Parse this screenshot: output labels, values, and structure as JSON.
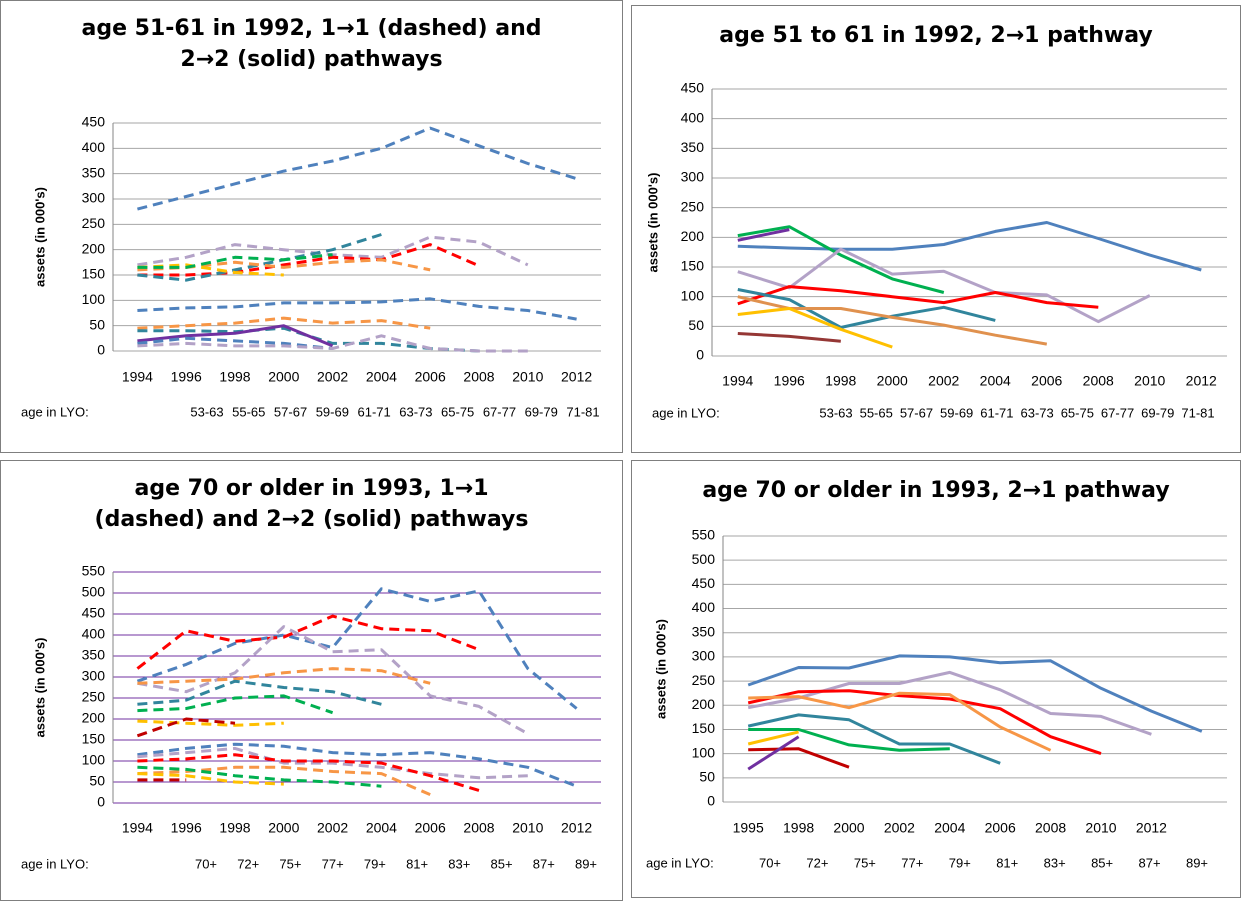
{
  "chart_data": [
    {
      "type": "line",
      "title": "age 51-61 in 1992, 1→1 (dashed) and 2→2 (solid) pathways",
      "ylabel": "assets (in 000's)",
      "categories": [
        "1994",
        "1996",
        "1998",
        "2000",
        "2002",
        "2004",
        "2006",
        "2008",
        "2010",
        "2012"
      ],
      "age_label": "age in LYO:",
      "ages": [
        "53-63",
        "55-65",
        "57-67",
        "59-69",
        "61-71",
        "63-73",
        "65-75",
        "67-77",
        "69-79",
        "71-81"
      ],
      "ylim": [
        0,
        450
      ],
      "yticks": [
        0,
        50,
        100,
        150,
        200,
        250,
        300,
        350,
        400,
        450
      ],
      "grid": true,
      "grid_color": "#a6a6a6",
      "series": [
        {
          "color": "#4f81bd",
          "dashed": true,
          "values": [
            280,
            305,
            330,
            355,
            375,
            400,
            440,
            405,
            370,
            340
          ]
        },
        {
          "color": "#4f81bd",
          "dashed": true,
          "values": [
            80,
            85,
            87,
            95,
            95,
            97,
            103,
            88,
            80,
            63
          ]
        },
        {
          "color": "#b3a2c7",
          "dashed": true,
          "values": [
            170,
            185,
            210,
            200,
            190,
            185,
            225,
            215,
            170,
            null
          ]
        },
        {
          "color": "#ff0000",
          "dashed": true,
          "values": [
            150,
            150,
            155,
            170,
            185,
            180,
            210,
            168,
            null,
            null
          ]
        },
        {
          "color": "#31859c",
          "dashed": true,
          "values": [
            150,
            140,
            160,
            180,
            200,
            230,
            null,
            null,
            null,
            null
          ]
        },
        {
          "color": "#f79646",
          "dashed": true,
          "values": [
            160,
            165,
            175,
            165,
            175,
            180,
            160,
            null,
            null,
            null
          ]
        },
        {
          "color": "#ffc000",
          "dashed": true,
          "values": [
            165,
            170,
            155,
            150,
            null,
            null,
            null,
            null,
            null,
            null
          ]
        },
        {
          "color": "#00b050",
          "dashed": true,
          "values": [
            165,
            165,
            185,
            180,
            190,
            null,
            null,
            null,
            null,
            null
          ]
        },
        {
          "color": "#f79646",
          "dashed": true,
          "values": [
            45,
            50,
            55,
            65,
            55,
            60,
            45,
            null,
            null,
            null
          ]
        },
        {
          "color": "#31859c",
          "dashed": true,
          "values": [
            40,
            40,
            38,
            45,
            15,
            15,
            5,
            0,
            null,
            null
          ]
        },
        {
          "color": "#7030a0",
          "dashed": false,
          "values": [
            20,
            30,
            35,
            50,
            10,
            null,
            null,
            null,
            null,
            null
          ]
        },
        {
          "color": "#4f81bd",
          "dashed": true,
          "values": [
            15,
            25,
            20,
            15,
            5,
            null,
            null,
            null,
            null,
            null
          ]
        },
        {
          "color": "#b3a2c7",
          "dashed": true,
          "values": [
            10,
            15,
            10,
            10,
            5,
            30,
            5,
            0,
            0,
            null
          ]
        }
      ]
    },
    {
      "type": "line",
      "title": "age 51 to 61 in 1992, 2→1 pathway",
      "ylabel": "assets (in 000's)",
      "categories": [
        "1994",
        "1996",
        "1998",
        "2000",
        "2002",
        "2004",
        "2006",
        "2008",
        "2010",
        "2012"
      ],
      "age_label": "age in LYO:",
      "ages": [
        "53-63",
        "55-65",
        "57-67",
        "59-69",
        "61-71",
        "63-73",
        "65-75",
        "67-77",
        "69-79",
        "71-81"
      ],
      "ylim": [
        0,
        450
      ],
      "yticks": [
        0,
        50,
        100,
        150,
        200,
        250,
        300,
        350,
        400,
        450
      ],
      "grid": true,
      "grid_color": "#a6a6a6",
      "series": [
        {
          "color": "#4f81bd",
          "dashed": false,
          "values": [
            185,
            182,
            180,
            180,
            188,
            210,
            225,
            198,
            170,
            145
          ]
        },
        {
          "color": "#00b050",
          "dashed": false,
          "values": [
            203,
            218,
            170,
            130,
            107,
            null,
            null,
            null,
            null,
            null
          ]
        },
        {
          "color": "#7030a0",
          "dashed": false,
          "values": [
            195,
            213,
            null,
            null,
            null,
            null,
            null,
            null,
            null,
            null
          ]
        },
        {
          "color": "#b3a2c7",
          "dashed": false,
          "values": [
            142,
            115,
            180,
            138,
            143,
            107,
            103,
            58,
            102,
            null
          ]
        },
        {
          "color": "#ff0000",
          "dashed": false,
          "values": [
            88,
            117,
            110,
            100,
            90,
            107,
            90,
            82,
            null,
            null
          ]
        },
        {
          "color": "#31859c",
          "dashed": false,
          "values": [
            112,
            95,
            48,
            67,
            82,
            60,
            null,
            null,
            null,
            null
          ]
        },
        {
          "color": "#e0914e",
          "dashed": false,
          "values": [
            100,
            80,
            80,
            65,
            52,
            35,
            20,
            null,
            null,
            null
          ]
        },
        {
          "color": "#ffc000",
          "dashed": false,
          "values": [
            70,
            80,
            45,
            15,
            null,
            null,
            null,
            null,
            null,
            null
          ]
        },
        {
          "color": "#953735",
          "dashed": false,
          "values": [
            38,
            33,
            25,
            null,
            null,
            null,
            null,
            null,
            null,
            null
          ]
        }
      ]
    },
    {
      "type": "line",
      "title": "age 70 or older in 1993, 1→1 (dashed) and 2→2 (solid) pathways",
      "ylabel": "assets (in 000's)",
      "categories": [
        "1994",
        "1996",
        "1998",
        "2000",
        "2002",
        "2004",
        "2006",
        "2008",
        "2010",
        "2012"
      ],
      "age_label": "age in LYO:",
      "ages": [
        "70+",
        "72+",
        "75+",
        "77+",
        "79+",
        "81+",
        "83+",
        "85+",
        "87+",
        "89+"
      ],
      "ylim": [
        0,
        550
      ],
      "yticks": [
        0,
        50,
        100,
        150,
        200,
        250,
        300,
        350,
        400,
        450,
        500,
        550
      ],
      "grid": true,
      "grid_color": "#7030a0",
      "series": [
        {
          "color": "#4f81bd",
          "dashed": true,
          "values": [
            290,
            330,
            380,
            400,
            370,
            510,
            480,
            505,
            320,
            225
          ]
        },
        {
          "color": "#ff0000",
          "dashed": true,
          "values": [
            320,
            410,
            385,
            395,
            445,
            415,
            410,
            365,
            null,
            null
          ]
        },
        {
          "color": "#b3a2c7",
          "dashed": true,
          "values": [
            285,
            265,
            310,
            420,
            360,
            365,
            255,
            230,
            165,
            null
          ]
        },
        {
          "color": "#f79646",
          "dashed": true,
          "values": [
            285,
            290,
            295,
            310,
            320,
            315,
            285,
            null,
            null,
            null
          ]
        },
        {
          "color": "#31859c",
          "dashed": true,
          "values": [
            235,
            245,
            290,
            275,
            265,
            235,
            null,
            null,
            null,
            null
          ]
        },
        {
          "color": "#00b050",
          "dashed": true,
          "values": [
            220,
            225,
            250,
            255,
            215,
            null,
            null,
            null,
            null,
            null
          ]
        },
        {
          "color": "#ffc000",
          "dashed": true,
          "values": [
            195,
            190,
            185,
            190,
            null,
            null,
            null,
            null,
            null,
            null
          ]
        },
        {
          "color": "#c00000",
          "dashed": true,
          "values": [
            160,
            200,
            190,
            null,
            null,
            null,
            null,
            null,
            null,
            null
          ]
        },
        {
          "color": "#4f81bd",
          "dashed": true,
          "values": [
            115,
            130,
            140,
            135,
            120,
            115,
            120,
            105,
            85,
            40
          ]
        },
        {
          "color": "#b3a2c7",
          "dashed": true,
          "values": [
            110,
            120,
            130,
            95,
            95,
            85,
            70,
            60,
            65,
            null
          ]
        },
        {
          "color": "#ff0000",
          "dashed": true,
          "values": [
            100,
            105,
            115,
            100,
            100,
            95,
            65,
            30,
            null,
            null
          ]
        },
        {
          "color": "#f79646",
          "dashed": true,
          "values": [
            70,
            75,
            85,
            85,
            75,
            70,
            20,
            null,
            null,
            null
          ]
        },
        {
          "color": "#00b050",
          "dashed": true,
          "values": [
            85,
            80,
            65,
            55,
            50,
            40,
            null,
            null,
            null,
            null
          ]
        },
        {
          "color": "#ffc000",
          "dashed": true,
          "values": [
            70,
            65,
            50,
            45,
            null,
            null,
            null,
            null,
            null,
            null
          ]
        },
        {
          "color": "#c00000",
          "dashed": true,
          "values": [
            55,
            55,
            null,
            null,
            null,
            null,
            null,
            null,
            null,
            null
          ]
        }
      ]
    },
    {
      "type": "line",
      "title": "age 70 or older in 1993, 2→1 pathway",
      "ylabel": "assets (in 000's)",
      "categories": [
        "1995",
        "1998",
        "2000",
        "2002",
        "2004",
        "2006",
        "2008",
        "2010",
        "2012",
        null
      ],
      "age_label": "age in LYO:",
      "ages": [
        "70+",
        "72+",
        "75+",
        "77+",
        "79+",
        "81+",
        "83+",
        "85+",
        "87+",
        "89+"
      ],
      "ylim": [
        0,
        550
      ],
      "yticks": [
        0,
        50,
        100,
        150,
        200,
        250,
        300,
        350,
        400,
        450,
        500,
        550
      ],
      "grid": true,
      "grid_color": "#a6a6a6",
      "series": [
        {
          "color": "#4f81bd",
          "dashed": false,
          "values": [
            242,
            278,
            277,
            302,
            300,
            288,
            292,
            235,
            188,
            146
          ]
        },
        {
          "color": "#b3a2c7",
          "dashed": false,
          "values": [
            195,
            215,
            245,
            245,
            268,
            232,
            183,
            177,
            140,
            null
          ]
        },
        {
          "color": "#ff0000",
          "dashed": false,
          "values": [
            205,
            228,
            230,
            220,
            213,
            193,
            135,
            100,
            null,
            null
          ]
        },
        {
          "color": "#f79646",
          "dashed": false,
          "values": [
            215,
            218,
            195,
            225,
            222,
            155,
            107,
            null,
            null,
            null
          ]
        },
        {
          "color": "#31859c",
          "dashed": false,
          "values": [
            157,
            180,
            170,
            120,
            120,
            80,
            null,
            null,
            null,
            null
          ]
        },
        {
          "color": "#00b050",
          "dashed": false,
          "values": [
            150,
            150,
            118,
            107,
            110,
            null,
            null,
            null,
            null,
            null
          ]
        },
        {
          "color": "#ffc000",
          "dashed": false,
          "values": [
            120,
            145,
            null,
            null,
            null,
            null,
            null,
            null,
            null,
            null
          ]
        },
        {
          "color": "#c00000",
          "dashed": false,
          "values": [
            108,
            110,
            72,
            null,
            null,
            null,
            null,
            null,
            null,
            null
          ]
        },
        {
          "color": "#7030a0",
          "dashed": false,
          "values": [
            68,
            135,
            null,
            null,
            null,
            null,
            null,
            null,
            null,
            null
          ]
        }
      ]
    }
  ]
}
